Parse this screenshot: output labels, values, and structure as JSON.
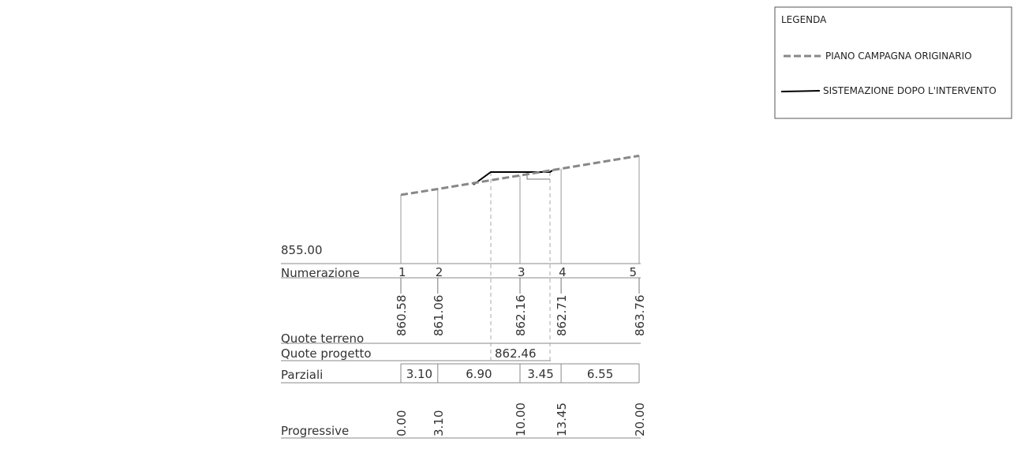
{
  "legend": {
    "title": "LEGENDA",
    "items": [
      {
        "label": "PIANO CAMPAGNA ORIGINARIO"
      },
      {
        "label": "SISTEMAZIONE DOPO L'INTERVENTO"
      }
    ]
  },
  "profile": {
    "datum": "855.00",
    "row_labels": {
      "numerazione": "Numerazione",
      "quote_terreno": "Quote terreno",
      "quote_progetto": "Quote progetto",
      "parziali": "Parziali",
      "progressive": "Progressive"
    },
    "stations": [
      {
        "numero": "1",
        "quota_terreno": "860.58",
        "progressiva": "0.00"
      },
      {
        "numero": "2",
        "quota_terreno": "861.06",
        "progressiva": "3.10"
      },
      {
        "numero": "3",
        "quota_terreno": "862.16",
        "progressiva": "10.00"
      },
      {
        "numero": "4",
        "quota_terreno": "862.71",
        "progressiva": "13.45"
      },
      {
        "numero": "5",
        "quota_terreno": "863.76",
        "progressiva": "20.00"
      }
    ],
    "quota_progetto": "862.46",
    "parziali": [
      "3.10",
      "6.90",
      "3.45",
      "6.55"
    ]
  }
}
